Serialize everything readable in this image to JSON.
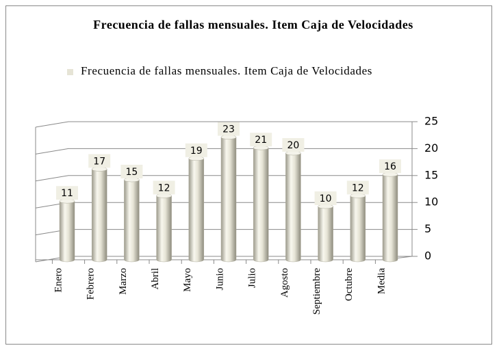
{
  "chart_data": {
    "type": "bar",
    "title": "Frecuencia de fallas  mensuales. Item Caja de Velocidades",
    "categories": [
      "Enero",
      "Febrero",
      "Marzo",
      "Abril",
      "Mayo",
      "Junio",
      "Julio",
      "Agosto",
      "Septiembre",
      "Octubre",
      "Media"
    ],
    "series": [
      {
        "name": "Frecuencia de fallas  mensuales. Item Caja de Velocidades",
        "color": "#e6e4d6",
        "values": [
          11,
          17,
          15,
          12,
          19,
          23,
          21,
          20,
          10,
          12,
          16
        ]
      }
    ],
    "ylim": [
      0,
      25
    ],
    "yticks": [
      0,
      5,
      10,
      15,
      20,
      25
    ],
    "grid": true,
    "legend": "top"
  }
}
